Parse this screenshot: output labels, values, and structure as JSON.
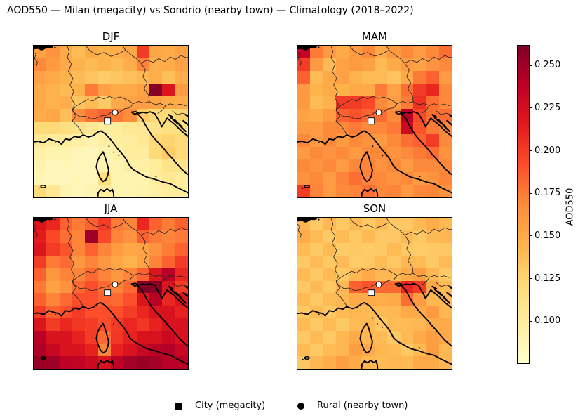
{
  "suptitle": "AOD550 — Milan (megacity) vs Sondrio (nearby town) — Climatology (2018–2022)",
  "colorbar": {
    "label": "AOD550",
    "tick_labels": [
      "0.250",
      "0.225",
      "0.200",
      "0.175",
      "0.150",
      "0.125",
      "0.100"
    ],
    "tick_values": [
      0.25,
      0.225,
      0.2,
      0.175,
      0.15,
      0.125,
      0.1
    ]
  },
  "legend": {
    "items": [
      {
        "marker": "square",
        "label": "City (megacity)"
      },
      {
        "marker": "circle",
        "label": "Rural (nearby town)"
      }
    ]
  },
  "chart_data": {
    "type": "heatmap",
    "subtype": "seasonal-map-grid",
    "grid_size": {
      "rows": 12,
      "cols": 12
    },
    "value_label": "AOD550",
    "color_range": {
      "vmin": 0.075,
      "vmax": 0.262
    },
    "colormap": {
      "name": "YlOrRd",
      "stops": [
        0,
        0.125,
        0.25,
        0.375,
        0.5,
        0.625,
        0.75,
        0.875,
        1
      ],
      "colors": [
        "#ffffcc",
        "#ffeda0",
        "#fed976",
        "#feb24c",
        "#fd8d3c",
        "#fc4e2a",
        "#e31a1c",
        "#bd0026",
        "#800026"
      ]
    },
    "markers": {
      "city": {
        "label": "City (megacity)",
        "x_pct": 47.9,
        "y_pct": 49.7
      },
      "rural": {
        "label": "Rural (nearby town)",
        "x_pct": 52.8,
        "y_pct": 44.2
      }
    },
    "panels": [
      {
        "title": "DJF",
        "values": [
          [
            0.155,
            0.165,
            0.15,
            0.14,
            0.15,
            0.145,
            0.148,
            0.152,
            0.2,
            0.152,
            0.15,
            0.155
          ],
          [
            0.17,
            0.16,
            0.15,
            0.145,
            0.14,
            0.145,
            0.14,
            0.148,
            0.172,
            0.148,
            0.148,
            0.155
          ],
          [
            0.155,
            0.15,
            0.145,
            0.14,
            0.135,
            0.13,
            0.133,
            0.138,
            0.142,
            0.148,
            0.138,
            0.148
          ],
          [
            0.15,
            0.145,
            0.14,
            0.145,
            0.175,
            0.155,
            0.15,
            0.15,
            0.155,
            0.26,
            0.22,
            0.16
          ],
          [
            0.15,
            0.145,
            0.148,
            0.135,
            0.14,
            0.132,
            0.15,
            0.155,
            0.158,
            0.155,
            0.15,
            0.148
          ],
          [
            0.148,
            0.152,
            0.138,
            0.168,
            0.178,
            0.185,
            0.175,
            0.168,
            0.13,
            0.122,
            0.12,
            0.125
          ],
          [
            0.12,
            0.12,
            0.115,
            0.11,
            0.105,
            0.1,
            0.1,
            0.105,
            0.105,
            0.11,
            0.115,
            0.115
          ],
          [
            0.105,
            0.1,
            0.1,
            0.095,
            0.09,
            0.095,
            0.1,
            0.1,
            0.105,
            0.12,
            0.125,
            0.12
          ],
          [
            0.095,
            0.09,
            0.09,
            0.088,
            0.085,
            0.09,
            0.095,
            0.1,
            0.1,
            0.12,
            0.13,
            0.12
          ],
          [
            0.09,
            0.085,
            0.088,
            0.085,
            0.085,
            0.09,
            0.09,
            0.095,
            0.095,
            0.1,
            0.11,
            0.11
          ],
          [
            0.088,
            0.085,
            0.085,
            0.088,
            0.085,
            0.115,
            0.09,
            0.09,
            0.09,
            0.1,
            0.105,
            0.1
          ],
          [
            0.12,
            0.105,
            0.09,
            0.085,
            0.09,
            0.1,
            0.09,
            0.09,
            0.092,
            0.095,
            0.1,
            0.1
          ]
        ]
      },
      {
        "title": "MAM",
        "values": [
          [
            0.235,
            0.175,
            0.16,
            0.15,
            0.16,
            0.17,
            0.15,
            0.16,
            0.17,
            0.16,
            0.17,
            0.18
          ],
          [
            0.2,
            0.16,
            0.14,
            0.155,
            0.16,
            0.155,
            0.14,
            0.15,
            0.16,
            0.155,
            0.165,
            0.17
          ],
          [
            0.185,
            0.14,
            0.15,
            0.155,
            0.145,
            0.14,
            0.14,
            0.135,
            0.15,
            0.175,
            0.185,
            0.16
          ],
          [
            0.16,
            0.145,
            0.15,
            0.145,
            0.15,
            0.15,
            0.175,
            0.155,
            0.18,
            0.2,
            0.21,
            0.17
          ],
          [
            0.16,
            0.14,
            0.145,
            0.2,
            0.2,
            0.195,
            0.17,
            0.16,
            0.175,
            0.205,
            0.18,
            0.17
          ],
          [
            0.155,
            0.15,
            0.16,
            0.185,
            0.19,
            0.185,
            0.18,
            0.17,
            0.24,
            0.195,
            0.18,
            0.18
          ],
          [
            0.16,
            0.16,
            0.17,
            0.17,
            0.175,
            0.17,
            0.17,
            0.175,
            0.23,
            0.19,
            0.175,
            0.17
          ],
          [
            0.17,
            0.16,
            0.17,
            0.16,
            0.17,
            0.165,
            0.16,
            0.17,
            0.18,
            0.185,
            0.2,
            0.17
          ],
          [
            0.16,
            0.17,
            0.165,
            0.17,
            0.16,
            0.17,
            0.17,
            0.165,
            0.17,
            0.175,
            0.18,
            0.165
          ],
          [
            0.17,
            0.165,
            0.17,
            0.16,
            0.17,
            0.172,
            0.165,
            0.17,
            0.16,
            0.17,
            0.17,
            0.17
          ],
          [
            0.165,
            0.17,
            0.16,
            0.172,
            0.18,
            0.172,
            0.17,
            0.165,
            0.17,
            0.16,
            0.165,
            0.172
          ],
          [
            0.2,
            0.172,
            0.16,
            0.17,
            0.172,
            0.18,
            0.17,
            0.172,
            0.16,
            0.17,
            0.172,
            0.165
          ]
        ]
      },
      {
        "title": "JJA",
        "values": [
          [
            0.22,
            0.21,
            0.185,
            0.175,
            0.185,
            0.2,
            0.175,
            0.172,
            0.21,
            0.185,
            0.175,
            0.185
          ],
          [
            0.215,
            0.195,
            0.18,
            0.172,
            0.25,
            0.195,
            0.172,
            0.165,
            0.185,
            0.175,
            0.172,
            0.175
          ],
          [
            0.22,
            0.2,
            0.19,
            0.172,
            0.185,
            0.172,
            0.16,
            0.152,
            0.155,
            0.165,
            0.175,
            0.185
          ],
          [
            0.2,
            0.175,
            0.182,
            0.162,
            0.172,
            0.162,
            0.152,
            0.145,
            0.155,
            0.172,
            0.185,
            0.2
          ],
          [
            0.185,
            0.162,
            0.172,
            0.172,
            0.182,
            0.172,
            0.162,
            0.172,
            0.185,
            0.22,
            0.24,
            0.21
          ],
          [
            0.175,
            0.155,
            0.165,
            0.182,
            0.192,
            0.182,
            0.172,
            0.182,
            0.26,
            0.258,
            0.22,
            0.2
          ],
          [
            0.185,
            0.172,
            0.182,
            0.192,
            0.192,
            0.185,
            0.182,
            0.192,
            0.22,
            0.24,
            0.21,
            0.22
          ],
          [
            0.2,
            0.185,
            0.192,
            0.2,
            0.192,
            0.192,
            0.192,
            0.2,
            0.21,
            0.22,
            0.222,
            0.212
          ],
          [
            0.22,
            0.2,
            0.21,
            0.202,
            0.2,
            0.192,
            0.2,
            0.21,
            0.202,
            0.212,
            0.222,
            0.222
          ],
          [
            0.24,
            0.222,
            0.222,
            0.212,
            0.2,
            0.182,
            0.202,
            0.212,
            0.222,
            0.222,
            0.23,
            0.222
          ],
          [
            0.245,
            0.232,
            0.222,
            0.222,
            0.212,
            0.172,
            0.212,
            0.222,
            0.232,
            0.24,
            0.242,
            0.232
          ],
          [
            0.252,
            0.25,
            0.238,
            0.236,
            0.23,
            0.222,
            0.238,
            0.248,
            0.252,
            0.248,
            0.24,
            0.24
          ]
        ]
      },
      {
        "title": "SON",
        "values": [
          [
            0.142,
            0.132,
            0.142,
            0.132,
            0.14,
            0.132,
            0.14,
            0.132,
            0.132,
            0.14,
            0.148,
            0.14
          ],
          [
            0.148,
            0.14,
            0.132,
            0.14,
            0.132,
            0.14,
            0.132,
            0.132,
            0.14,
            0.132,
            0.14,
            0.142
          ],
          [
            0.14,
            0.132,
            0.14,
            0.13,
            0.132,
            0.13,
            0.132,
            0.14,
            0.132,
            0.13,
            0.132,
            0.132
          ],
          [
            0.132,
            0.14,
            0.132,
            0.14,
            0.13,
            0.132,
            0.14,
            0.132,
            0.142,
            0.14,
            0.132,
            0.14
          ],
          [
            0.14,
            0.132,
            0.14,
            0.132,
            0.142,
            0.15,
            0.142,
            0.142,
            0.15,
            0.158,
            0.142,
            0.132
          ],
          [
            0.132,
            0.14,
            0.132,
            0.142,
            0.185,
            0.19,
            0.182,
            0.182,
            0.21,
            0.2,
            0.15,
            0.14
          ],
          [
            0.14,
            0.132,
            0.14,
            0.142,
            0.15,
            0.15,
            0.148,
            0.15,
            0.18,
            0.16,
            0.142,
            0.142
          ],
          [
            0.132,
            0.14,
            0.132,
            0.14,
            0.142,
            0.14,
            0.14,
            0.142,
            0.15,
            0.15,
            0.16,
            0.142
          ],
          [
            0.14,
            0.132,
            0.14,
            0.132,
            0.14,
            0.142,
            0.132,
            0.14,
            0.14,
            0.142,
            0.15,
            0.15
          ],
          [
            0.132,
            0.14,
            0.132,
            0.142,
            0.15,
            0.142,
            0.14,
            0.132,
            0.14,
            0.15,
            0.158,
            0.15
          ],
          [
            0.14,
            0.132,
            0.14,
            0.142,
            0.158,
            0.15,
            0.142,
            0.14,
            0.132,
            0.14,
            0.158,
            0.142
          ],
          [
            0.132,
            0.142,
            0.148,
            0.158,
            0.15,
            0.142,
            0.14,
            0.142,
            0.14,
            0.15,
            0.15,
            0.142
          ]
        ]
      }
    ]
  }
}
